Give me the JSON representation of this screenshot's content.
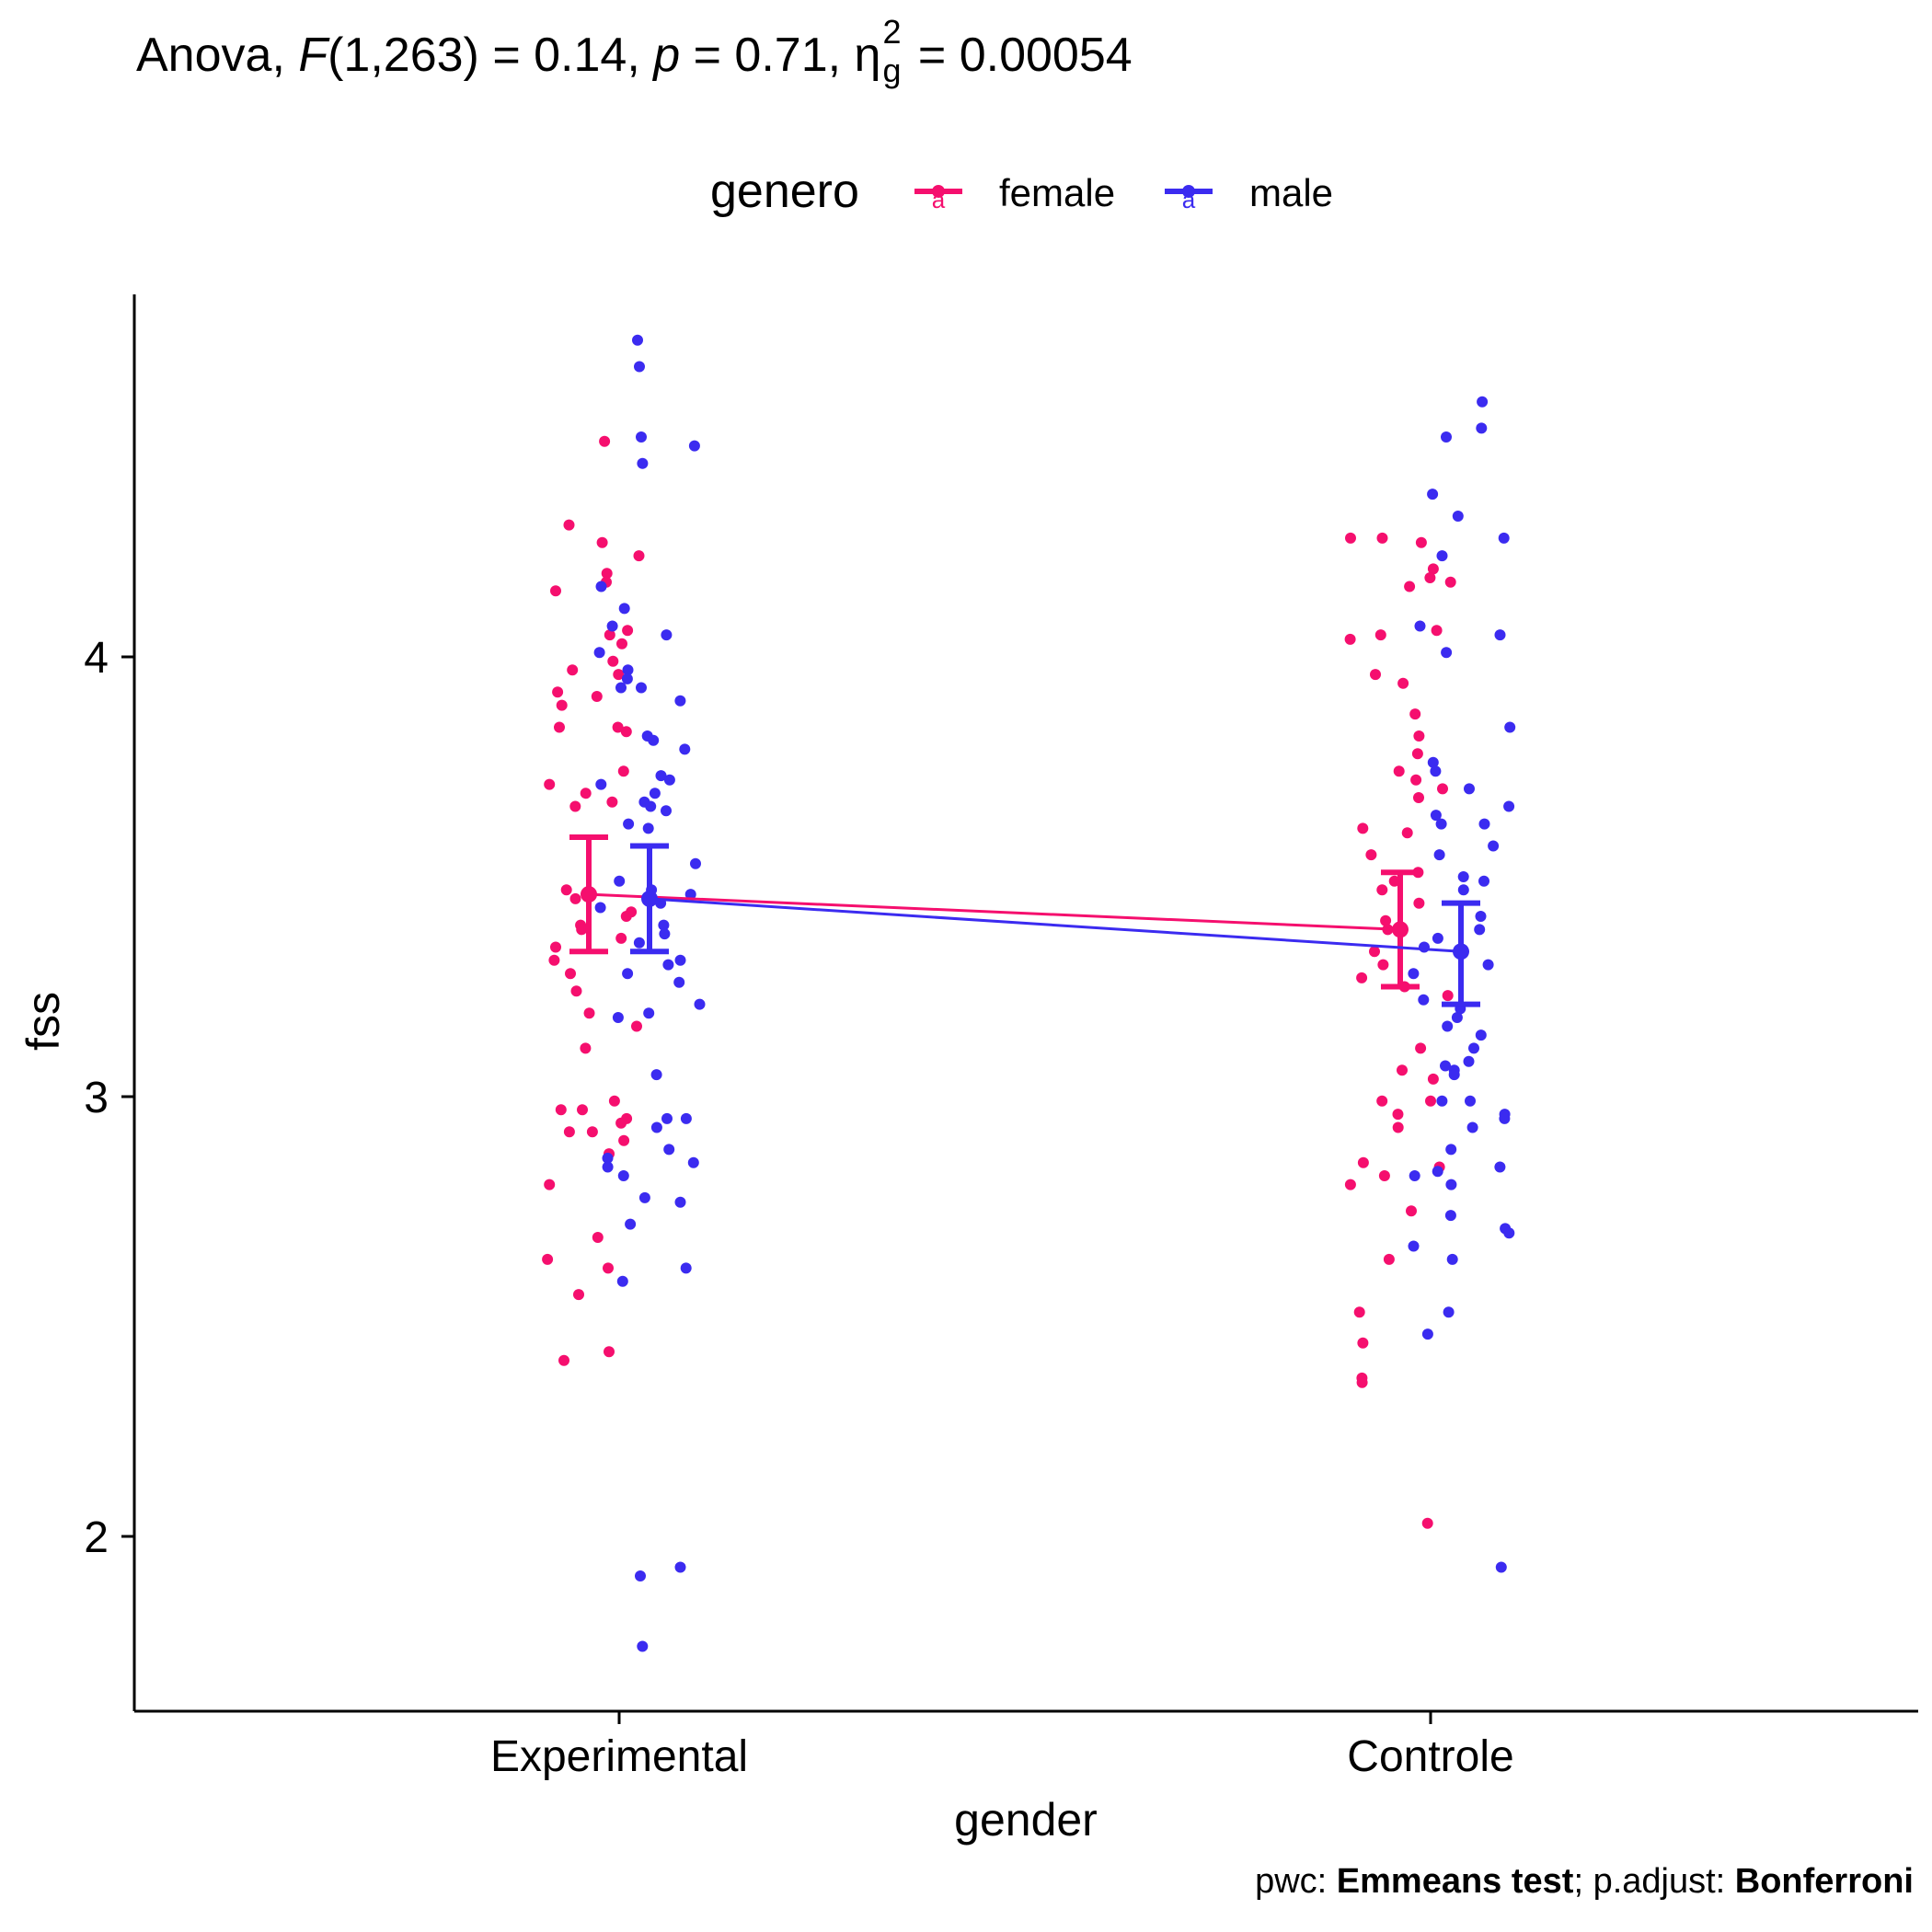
{
  "title": {
    "prefix": "Anova, ",
    "F_symbol": "F",
    "F_value": "(1,263) = 0.14, ",
    "p_symbol": "p",
    "p_value": " = 0.71, ",
    "eta_symbol": "η",
    "eta_sup": "2",
    "eta_sub": "g",
    "eta_value": " = 0.00054"
  },
  "legend": {
    "title": "genero",
    "items": [
      {
        "label": "female",
        "color": "#F50F6E"
      },
      {
        "label": "male",
        "color": "#3B2BF0"
      }
    ]
  },
  "caption": {
    "pwc_label": "pwc: ",
    "pwc_value": "Emmeans test",
    "sep": "; p.adjust: ",
    "adjust_value": "Bonferroni"
  },
  "chart_data": {
    "type": "scatter",
    "xlabel": "gender",
    "ylabel": "fss",
    "categories": [
      "Experimental",
      "Controle"
    ],
    "ylim": [
      1.6,
      4.82
    ],
    "yticks": [
      2,
      3,
      4
    ],
    "grid": false,
    "legend_position": "top",
    "summary": [
      {
        "name": "female",
        "color": "#F50F6E",
        "means": [
          3.46,
          3.38
        ],
        "lower": [
          3.33,
          3.25
        ],
        "upper": [
          3.59,
          3.51
        ]
      },
      {
        "name": "male",
        "color": "#3B2BF0",
        "means": [
          3.45,
          3.33
        ],
        "lower": [
          3.33,
          3.21
        ],
        "upper": [
          3.57,
          3.44
        ]
      }
    ],
    "points": [
      {
        "group": "female",
        "category": "Experimental",
        "y": [
          4.49,
          4.3,
          4.26,
          4.23,
          4.19,
          4.17,
          4.15,
          4.06,
          4.05,
          4.03,
          3.99,
          3.97,
          3.96,
          3.92,
          3.91,
          3.89,
          3.84,
          3.84,
          3.83,
          3.74,
          3.71,
          3.69,
          3.67,
          3.66,
          3.47,
          3.45,
          3.42,
          3.41,
          3.39,
          3.38,
          3.36,
          3.34,
          3.31,
          3.28,
          3.24,
          3.19,
          3.16,
          3.11,
          2.99,
          2.97,
          2.97,
          2.95,
          2.94,
          2.92,
          2.92,
          2.9,
          2.87,
          2.8,
          2.68,
          2.63,
          2.61,
          2.55,
          2.42,
          2.4
        ]
      },
      {
        "group": "male",
        "category": "Experimental",
        "y": [
          4.72,
          4.66,
          4.5,
          4.48,
          4.44,
          4.16,
          4.11,
          4.07,
          4.05,
          4.01,
          3.97,
          3.95,
          3.93,
          3.93,
          3.9,
          3.82,
          3.81,
          3.79,
          3.73,
          3.72,
          3.71,
          3.69,
          3.67,
          3.66,
          3.65,
          3.62,
          3.61,
          3.53,
          3.49,
          3.47,
          3.46,
          3.44,
          3.43,
          3.39,
          3.37,
          3.35,
          3.31,
          3.3,
          3.28,
          3.26,
          3.21,
          3.19,
          3.18,
          3.05,
          2.95,
          2.95,
          2.93,
          2.88,
          2.86,
          2.85,
          2.84,
          2.82,
          2.77,
          2.76,
          2.71,
          2.61,
          2.58,
          1.93,
          1.91,
          1.75
        ]
      },
      {
        "group": "female",
        "category": "Controle",
        "y": [
          4.27,
          4.27,
          4.26,
          4.2,
          4.18,
          4.17,
          4.16,
          4.06,
          4.05,
          4.04,
          3.96,
          3.94,
          3.87,
          3.82,
          3.78,
          3.74,
          3.72,
          3.7,
          3.68,
          3.61,
          3.6,
          3.55,
          3.51,
          3.49,
          3.47,
          3.44,
          3.4,
          3.38,
          3.33,
          3.3,
          3.27,
          3.25,
          3.23,
          3.11,
          3.06,
          3.04,
          2.99,
          2.99,
          2.96,
          2.93,
          2.85,
          2.84,
          2.82,
          2.8,
          2.74,
          2.63,
          2.51,
          2.44,
          2.36,
          2.35,
          2.03
        ]
      },
      {
        "group": "male",
        "category": "Controle",
        "y": [
          4.58,
          4.52,
          4.5,
          4.37,
          4.32,
          4.27,
          4.23,
          4.07,
          4.05,
          4.01,
          3.84,
          3.76,
          3.74,
          3.7,
          3.66,
          3.64,
          3.62,
          3.62,
          3.57,
          3.55,
          3.5,
          3.49,
          3.47,
          3.41,
          3.38,
          3.36,
          3.34,
          3.3,
          3.28,
          3.22,
          3.2,
          3.18,
          3.16,
          3.14,
          3.11,
          3.08,
          3.07,
          3.06,
          3.05,
          2.99,
          2.99,
          2.96,
          2.95,
          2.93,
          2.88,
          2.84,
          2.83,
          2.82,
          2.8,
          2.73,
          2.7,
          2.69,
          2.66,
          2.63,
          2.51,
          2.46,
          1.93
        ]
      }
    ]
  }
}
